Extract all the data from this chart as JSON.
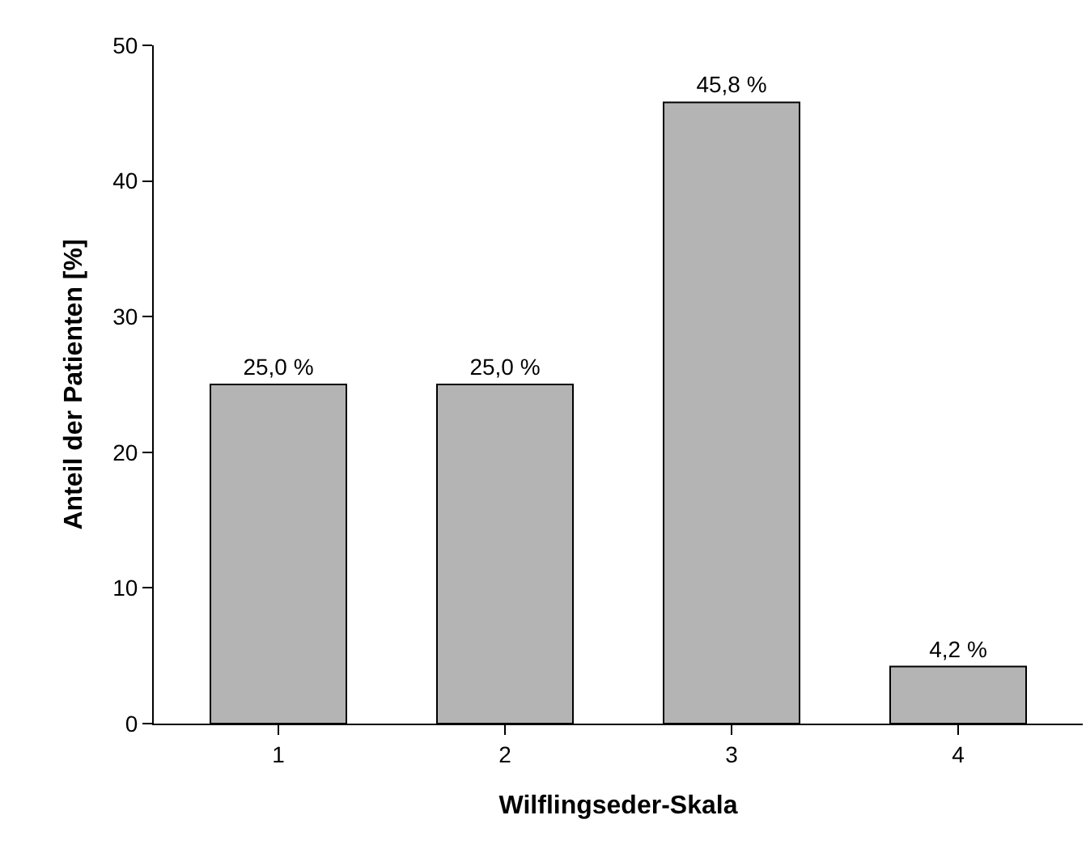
{
  "chart_data": {
    "type": "bar",
    "xlabel": "Wilflingseder-Skala",
    "ylabel": "Anteil der Patienten [%]",
    "categories": [
      "1",
      "2",
      "3",
      "4"
    ],
    "values": [
      25,
      25,
      45.8,
      4.2
    ],
    "value_labels": [
      "25,0 %",
      "25,0 %",
      "45,8 %",
      "4,2 %"
    ],
    "color": "#b4b4b4",
    "ylim": [
      0,
      50
    ],
    "yticks": [
      0,
      10,
      20,
      30,
      40,
      50
    ],
    "grid": false
  }
}
